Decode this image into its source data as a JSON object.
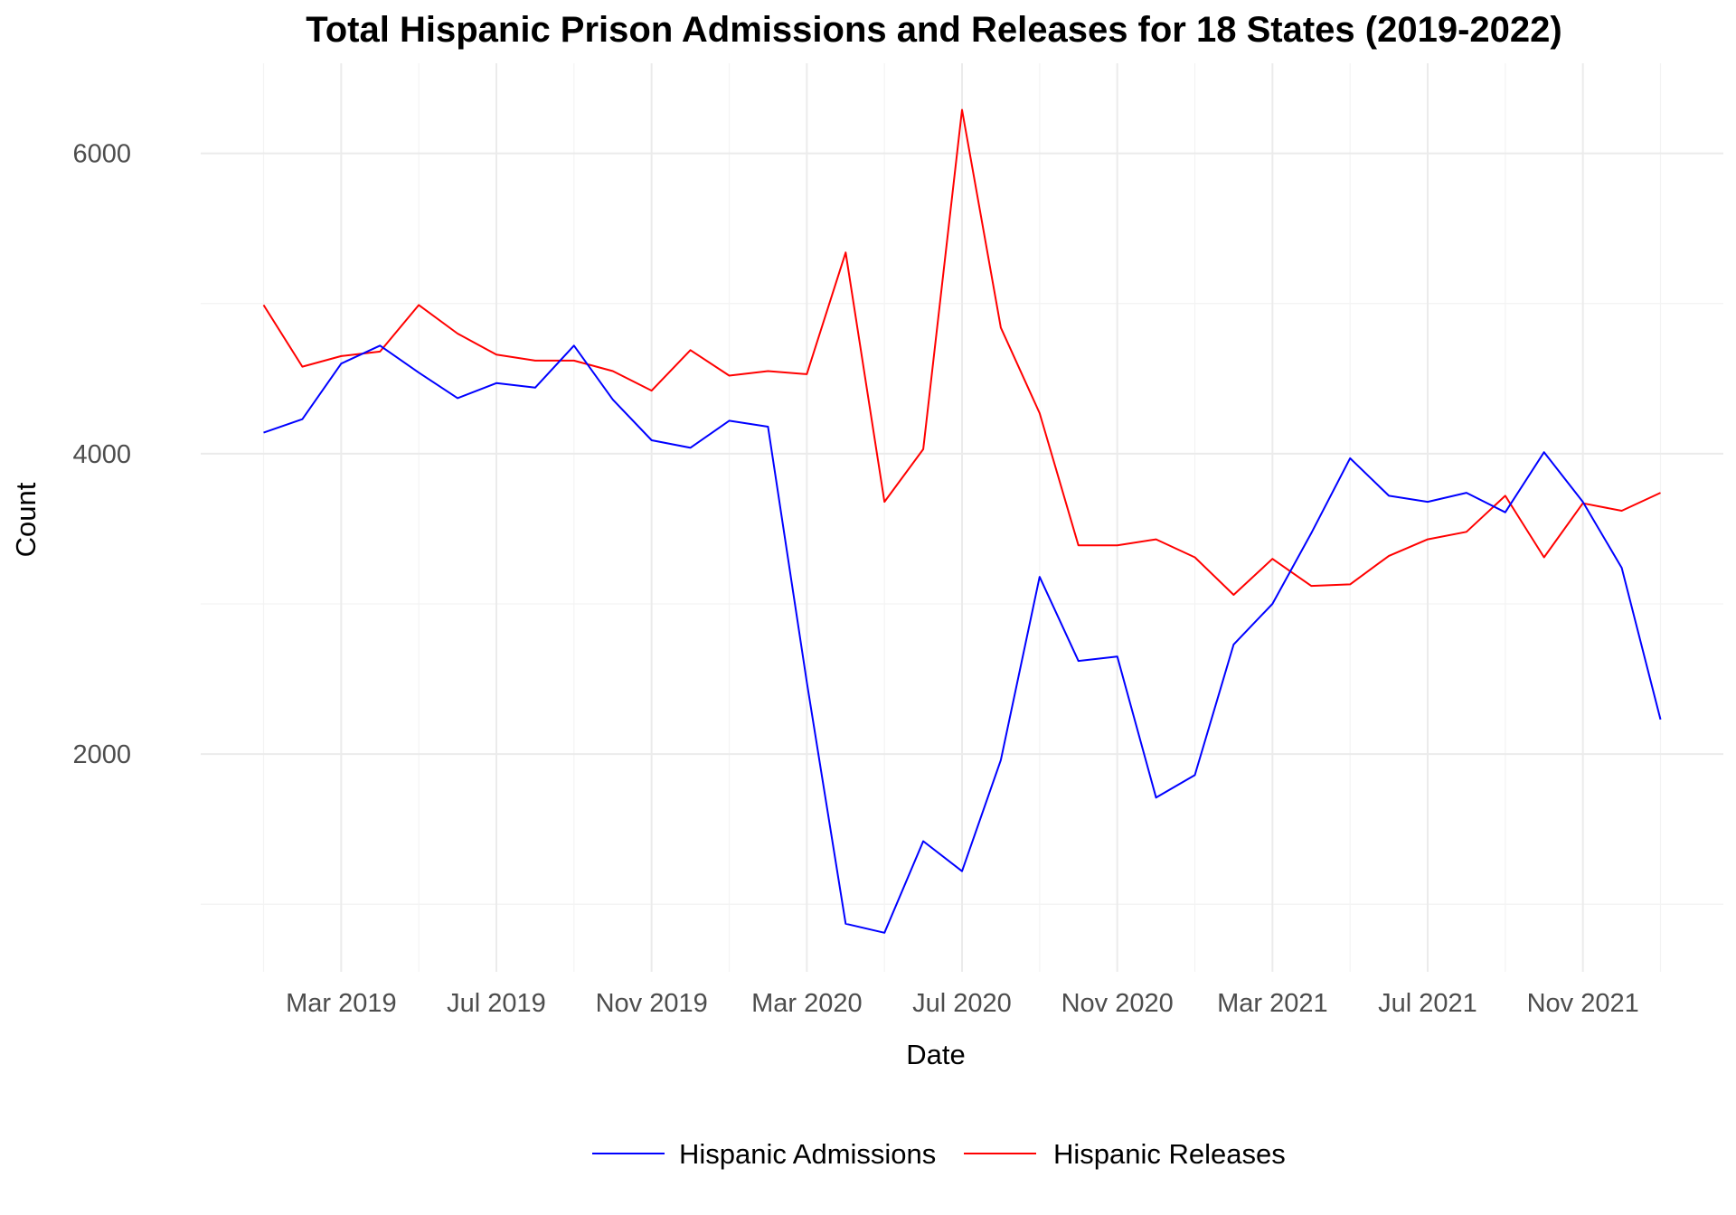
{
  "chart_data": {
    "type": "line",
    "title": "Total Hispanic Prison Admissions and Releases for 18 States (2019-2022)",
    "xlabel": "Date",
    "ylabel": "Count",
    "x": [
      "2019-01",
      "2019-02",
      "2019-03",
      "2019-04",
      "2019-05",
      "2019-06",
      "2019-07",
      "2019-08",
      "2019-09",
      "2019-10",
      "2019-11",
      "2019-12",
      "2020-01",
      "2020-02",
      "2020-03",
      "2020-04",
      "2020-05",
      "2020-06",
      "2020-07",
      "2020-08",
      "2020-09",
      "2020-10",
      "2020-11",
      "2020-12",
      "2021-01",
      "2021-02",
      "2021-03",
      "2021-04",
      "2021-05",
      "2021-06",
      "2021-07",
      "2021-08",
      "2021-09",
      "2021-10",
      "2021-11",
      "2021-12",
      "2022-01"
    ],
    "x_ticks": [
      {
        "date": "2019-03",
        "label": "Mar 2019"
      },
      {
        "date": "2019-07",
        "label": "Jul 2019"
      },
      {
        "date": "2019-11",
        "label": "Nov 2019"
      },
      {
        "date": "2020-03",
        "label": "Mar 2020"
      },
      {
        "date": "2020-07",
        "label": "Jul 2020"
      },
      {
        "date": "2020-11",
        "label": "Nov 2020"
      },
      {
        "date": "2021-03",
        "label": "Mar 2021"
      },
      {
        "date": "2021-07",
        "label": "Jul 2021"
      },
      {
        "date": "2021-11",
        "label": "Nov 2021"
      }
    ],
    "y_ticks": [
      2000,
      4000,
      6000
    ],
    "ylim": [
      550,
      6600
    ],
    "grid": true,
    "legend_position": "bottom",
    "series": [
      {
        "name": "Hispanic Admissions",
        "color": "#0000ff",
        "values": [
          4140,
          4230,
          4600,
          4720,
          4540,
          4370,
          4470,
          4440,
          4720,
          4360,
          4090,
          4040,
          4220,
          4180,
          2480,
          870,
          810,
          1420,
          1220,
          1960,
          3180,
          2620,
          2650,
          1710,
          1860,
          2730,
          3000,
          3470,
          3970,
          3720,
          3680,
          3740,
          3610,
          4010,
          3680,
          3240,
          2230
        ]
      },
      {
        "name": "Hispanic Releases",
        "color": "#ff0000",
        "values": [
          4990,
          4580,
          4650,
          4680,
          4990,
          4800,
          4660,
          4620,
          4620,
          4550,
          4420,
          4690,
          4520,
          4550,
          4530,
          5340,
          3680,
          4030,
          6290,
          4840,
          4270,
          3390,
          3390,
          3430,
          3310,
          3060,
          3300,
          3120,
          3130,
          3320,
          3430,
          3480,
          3720,
          3310,
          3670,
          3620,
          3740
        ]
      }
    ]
  }
}
